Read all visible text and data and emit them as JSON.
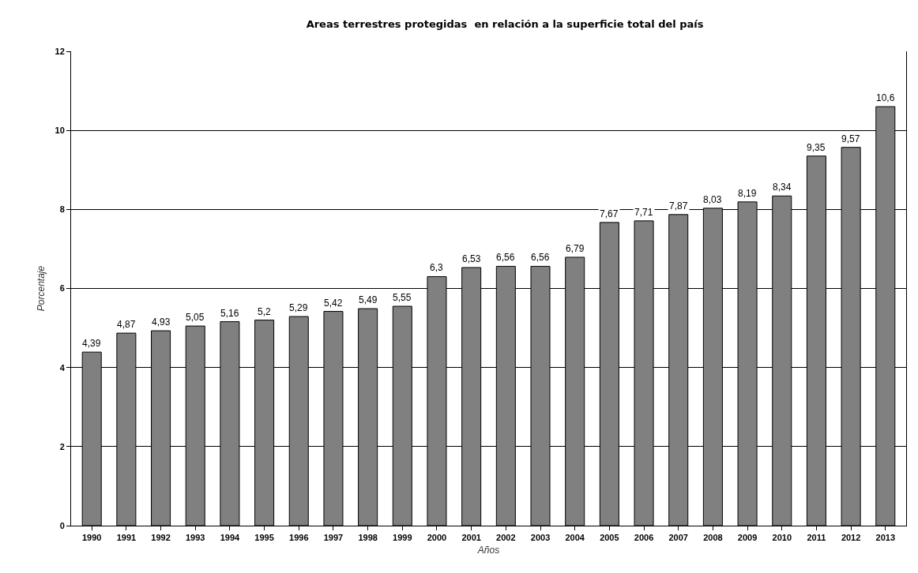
{
  "chart_data": {
    "type": "bar",
    "title": "Areas terrestres protegidas  en relación a la superficie total del país",
    "xlabel": "Años",
    "ylabel": "Porcentaje",
    "categories": [
      "1990",
      "1991",
      "1992",
      "1993",
      "1994",
      "1995",
      "1996",
      "1997",
      "1998",
      "1999",
      "2000",
      "2001",
      "2002",
      "2003",
      "2004",
      "2005",
      "2006",
      "2007",
      "2008",
      "2009",
      "2010",
      "2011",
      "2012",
      "2013"
    ],
    "values": [
      4.39,
      4.87,
      4.93,
      5.05,
      5.16,
      5.2,
      5.29,
      5.42,
      5.49,
      5.55,
      6.3,
      6.53,
      6.56,
      6.56,
      6.79,
      7.67,
      7.71,
      7.87,
      8.03,
      8.19,
      8.34,
      9.35,
      9.57,
      10.6
    ],
    "value_labels": [
      "4,39",
      "4,87",
      "4,93",
      "5,05",
      "5,16",
      "5,2",
      "5,29",
      "5,42",
      "5,49",
      "5,55",
      "6,3",
      "6,53",
      "6,56",
      "6,56",
      "6,79",
      "7,67",
      "7,71",
      "7,87",
      "8,03",
      "8,19",
      "8,34",
      "9,35",
      "9,57",
      "10,6"
    ],
    "color": "#808080",
    "ylim": [
      0,
      12
    ],
    "yticks": [
      0,
      2,
      4,
      6,
      8,
      10,
      12
    ],
    "grid": "y"
  }
}
